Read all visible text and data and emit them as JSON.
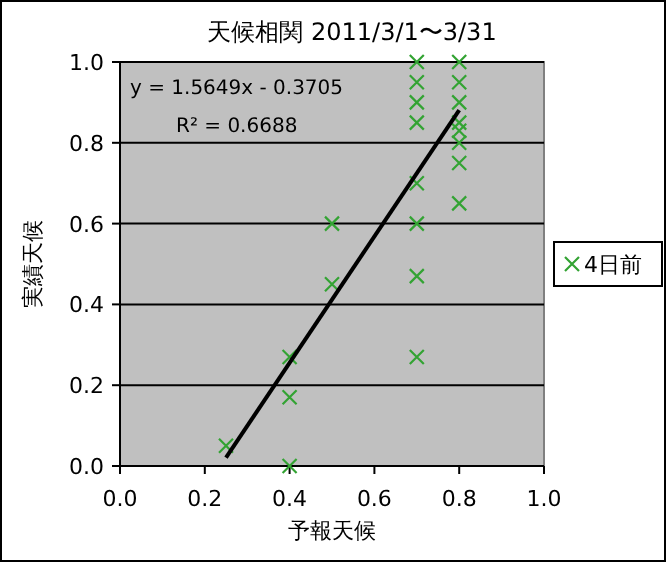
{
  "chart_data": {
    "type": "scatter",
    "title": "天候相関 2011/3/1〜3/31",
    "xlabel": "予報天候",
    "ylabel": "実績天候",
    "annotations": [
      "y = 1.5649x - 0.3705",
      "R² = 0.6688"
    ],
    "series": [
      {
        "name": "4日前",
        "color": "#33a333",
        "marker": "cross",
        "x": [
          0.25,
          0.4,
          0.4,
          0.4,
          0.5,
          0.5,
          0.7,
          0.7,
          0.7,
          0.7,
          0.7,
          0.7,
          0.7,
          0.7,
          0.8,
          0.8,
          0.8,
          0.8,
          0.8,
          0.8,
          0.8,
          0.8
        ],
        "values": [
          0.05,
          0.27,
          0.17,
          0.0,
          0.6,
          0.45,
          1.0,
          0.95,
          0.9,
          0.85,
          0.7,
          0.6,
          0.47,
          0.27,
          1.0,
          0.95,
          0.9,
          0.85,
          0.83,
          0.8,
          0.75,
          0.65
        ]
      },
      {
        "type": "line",
        "color": "#000000",
        "marker": "none",
        "x": [
          0.25,
          0.8
        ],
        "values": [
          0.021,
          0.881
        ]
      }
    ],
    "xlim": [
      0,
      1
    ],
    "xticks": [
      {
        "value": 0,
        "label": "0.0"
      },
      0.2,
      0.4,
      0.6,
      0.8,
      {
        "value": 1,
        "label": "1.0"
      }
    ],
    "ylim": [
      0,
      1
    ],
    "yticks": [
      {
        "value": 0,
        "label": "0.0"
      },
      0.2,
      0.4,
      0.6,
      0.8,
      {
        "value": 1,
        "label": "1.0"
      }
    ],
    "grid": "y",
    "legend": "right"
  }
}
